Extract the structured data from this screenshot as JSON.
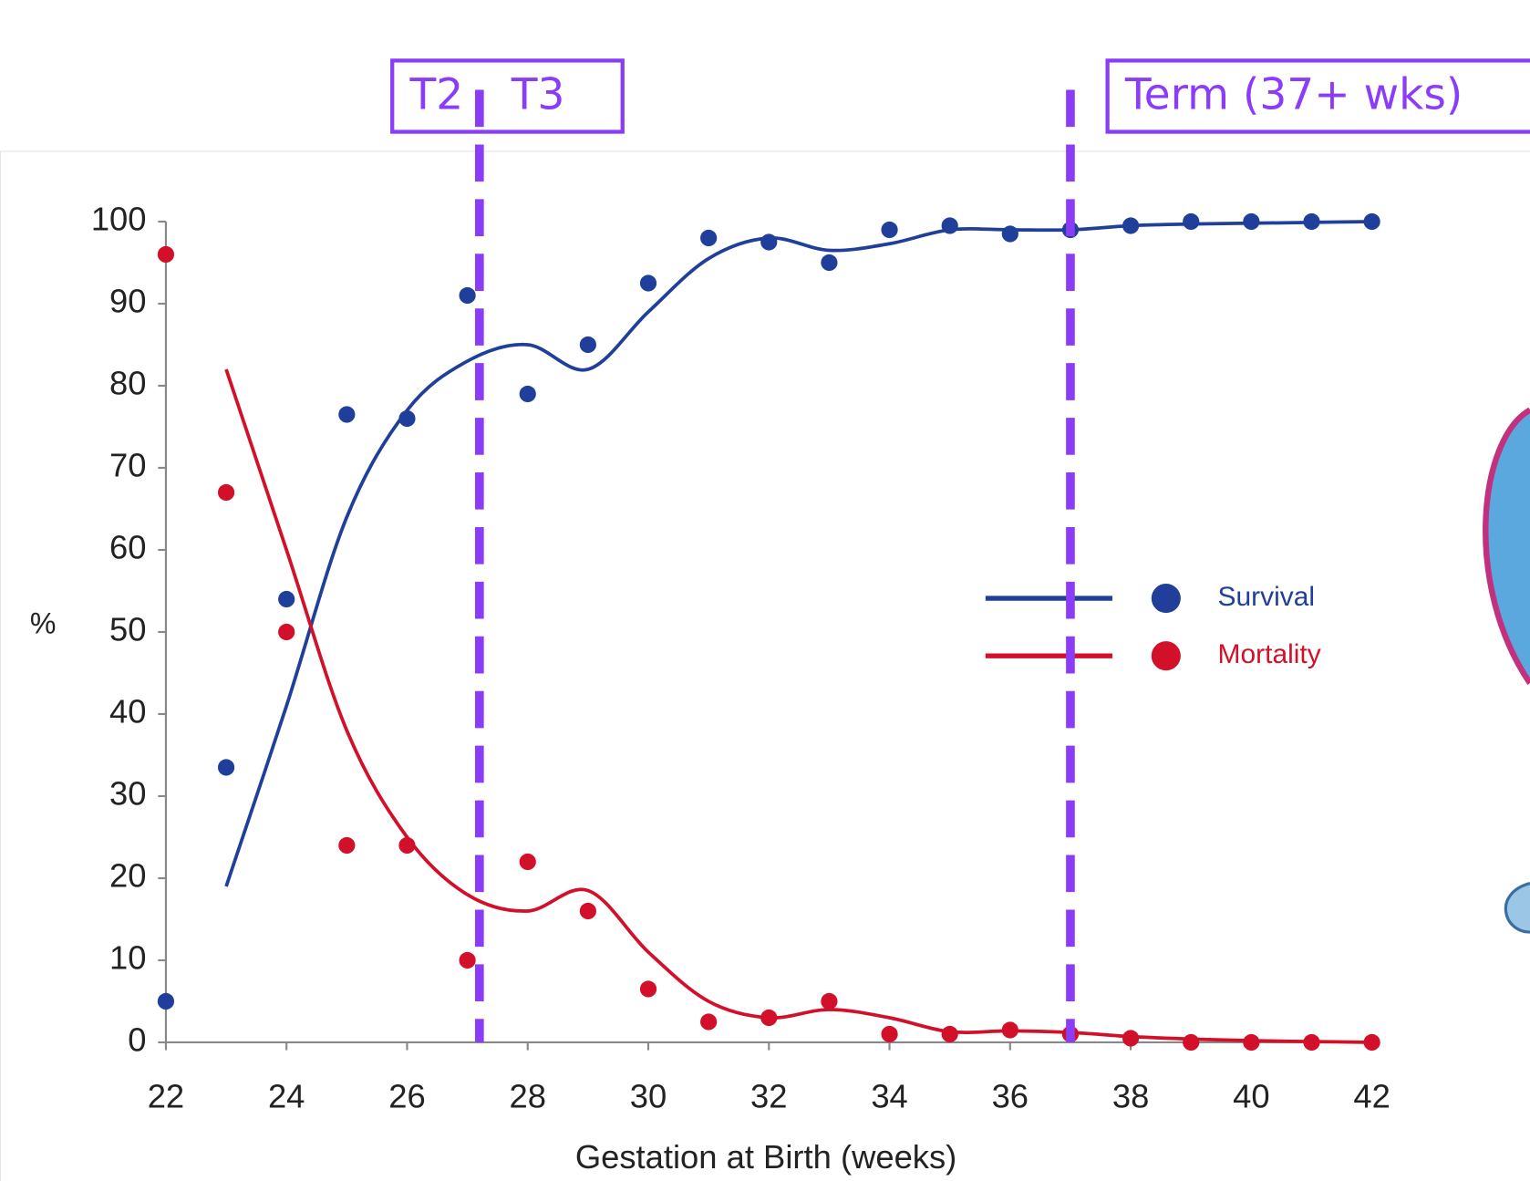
{
  "chart_data": {
    "type": "scatter",
    "x": [
      22,
      23,
      24,
      25,
      26,
      27,
      28,
      29,
      30,
      31,
      32,
      33,
      34,
      35,
      36,
      37,
      38,
      39,
      40,
      41,
      42
    ],
    "series": [
      {
        "name": "Survival",
        "color": "#1f3f9a",
        "values": [
          5,
          33.5,
          54,
          76.5,
          76,
          91,
          79,
          85,
          92.5,
          98,
          97.5,
          95,
          99,
          99.5,
          98.5,
          99,
          99.5,
          100,
          100,
          100,
          100
        ],
        "fit": [
          null,
          19,
          41,
          64,
          77,
          83,
          85,
          82,
          89,
          95.5,
          98,
          96.5,
          97.3,
          99,
          99,
          99,
          99.5,
          99.7,
          99.8,
          99.9,
          100
        ]
      },
      {
        "name": "Mortality",
        "color": "#d2102a",
        "values": [
          96,
          67,
          50,
          24,
          24,
          10,
          22,
          16,
          6.5,
          2.5,
          3,
          5,
          1,
          1,
          1.5,
          1,
          0.5,
          0,
          0,
          0,
          0
        ],
        "fit": [
          null,
          82,
          60,
          38,
          25,
          18,
          16,
          18.5,
          11,
          5,
          3,
          4,
          3,
          1.3,
          1.4,
          1.2,
          0.7,
          0.4,
          0.2,
          0.1,
          0
        ]
      }
    ],
    "xlabel": "Gestation at Birth (weeks)",
    "ylabel": "%",
    "xlim": [
      22,
      42
    ],
    "xticks": [
      22,
      24,
      26,
      28,
      30,
      32,
      34,
      36,
      38,
      40,
      42
    ],
    "ylim": [
      0,
      100
    ],
    "yticks": [
      0,
      10,
      20,
      30,
      40,
      50,
      60,
      70,
      80,
      90,
      100
    ],
    "legend": "right",
    "annotations": [
      "T2",
      "T3",
      "Term (37+ wks)"
    ],
    "vlines": [
      27.2,
      37
    ],
    "vline_color": "#8b3cf7"
  }
}
